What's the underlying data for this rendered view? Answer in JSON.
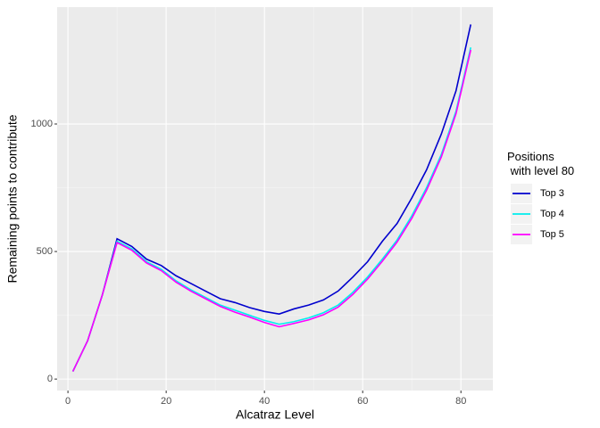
{
  "chart_data": {
    "type": "line",
    "x_label": "Alcatraz Level",
    "y_label": "Remaining points to contribute",
    "legend_title": "Positions\n with level 80",
    "legend_position": "right",
    "grid": true,
    "x": [
      1,
      4,
      7,
      10,
      13,
      16,
      19,
      22,
      25,
      28,
      31,
      34,
      37,
      40,
      43,
      46,
      49,
      52,
      55,
      58,
      61,
      64,
      67,
      70,
      73,
      76,
      79,
      82
    ],
    "series": [
      {
        "name": "Top 3",
        "color": "#0000cd",
        "values": [
          30,
          150,
          330,
          550,
          520,
          470,
          445,
          405,
          375,
          345,
          315,
          300,
          280,
          265,
          255,
          275,
          290,
          310,
          345,
          400,
          460,
          540,
          610,
          710,
          820,
          960,
          1130,
          1390
        ]
      },
      {
        "name": "Top 4",
        "color": "#00eeee",
        "values": [
          30,
          150,
          330,
          540,
          510,
          460,
          430,
          385,
          350,
          320,
          290,
          270,
          250,
          230,
          215,
          225,
          240,
          260,
          290,
          340,
          400,
          470,
          545,
          640,
          750,
          880,
          1050,
          1300
        ]
      },
      {
        "name": "Top 5",
        "color": "#ff00ff",
        "values": [
          30,
          150,
          330,
          535,
          505,
          455,
          425,
          380,
          345,
          315,
          285,
          262,
          243,
          222,
          205,
          218,
          232,
          252,
          282,
          332,
          392,
          462,
          537,
          630,
          740,
          870,
          1040,
          1290
        ]
      }
    ],
    "xlim": [
      -2.2,
      86.5
    ],
    "xticks": [
      0,
      20,
      40,
      60,
      80
    ],
    "ylim": [
      -45,
      1458
    ],
    "yticks": [
      0,
      500,
      1000
    ]
  }
}
